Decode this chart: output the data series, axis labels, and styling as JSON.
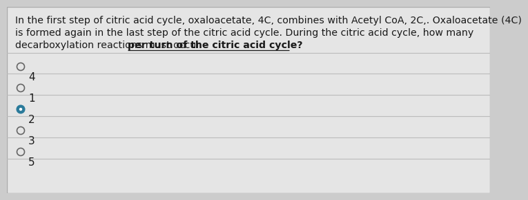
{
  "question_line1": "In the first step of citric acid cycle, oxaloacetate, 4C, combines with Acetyl CoA, 2C,. Oxaloacetate (4C)",
  "question_line2": "is formed again in the last step of the citric acid cycle. During the citric acid cycle, how many",
  "question_line3_normal": "decarboxylation reactions must occur ",
  "question_line3_underline": "per turn of the citric acid cycle?",
  "options": [
    "4",
    "1",
    "2",
    "3",
    "5"
  ],
  "selected_index": 2,
  "bg_color": "#cccccc",
  "panel_color": "#e5e5e5",
  "text_color": "#1a1a1a",
  "radio_empty_edge": "#666666",
  "radio_selected_face": "#2a7a9a",
  "radio_selected_edge": "#2a7a9a",
  "separator_color": "#bbbbbb",
  "font_size_q": 10.2,
  "font_size_opt": 11.0
}
